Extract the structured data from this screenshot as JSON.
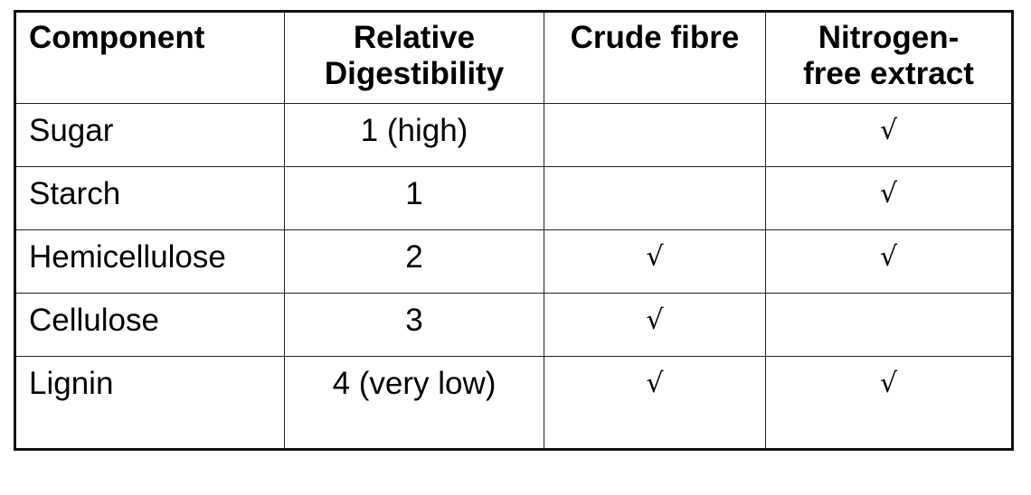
{
  "table": {
    "headers": [
      "Component",
      "Relative Digestibility",
      "Crude fibre",
      "Nitrogen-free extract"
    ],
    "header_lines": [
      [
        "Component"
      ],
      [
        "Relative",
        "Digestibility"
      ],
      [
        "Crude fibre"
      ],
      [
        "Nitrogen-",
        "free extract"
      ]
    ],
    "check_symbol": "√",
    "rows": [
      {
        "component": "Sugar",
        "digestibility": "1 (high)",
        "crude_fibre": "",
        "nfe": "√"
      },
      {
        "component": "Starch",
        "digestibility": "1",
        "crude_fibre": "",
        "nfe": "√"
      },
      {
        "component": "Hemicellulose",
        "digestibility": "2",
        "crude_fibre": "√",
        "nfe": "√"
      },
      {
        "component": "Cellulose",
        "digestibility": "3",
        "crude_fibre": "√",
        "nfe": ""
      },
      {
        "component": "Lignin",
        "digestibility": "4 (very low)",
        "crude_fibre": "√",
        "nfe": "√"
      }
    ]
  }
}
